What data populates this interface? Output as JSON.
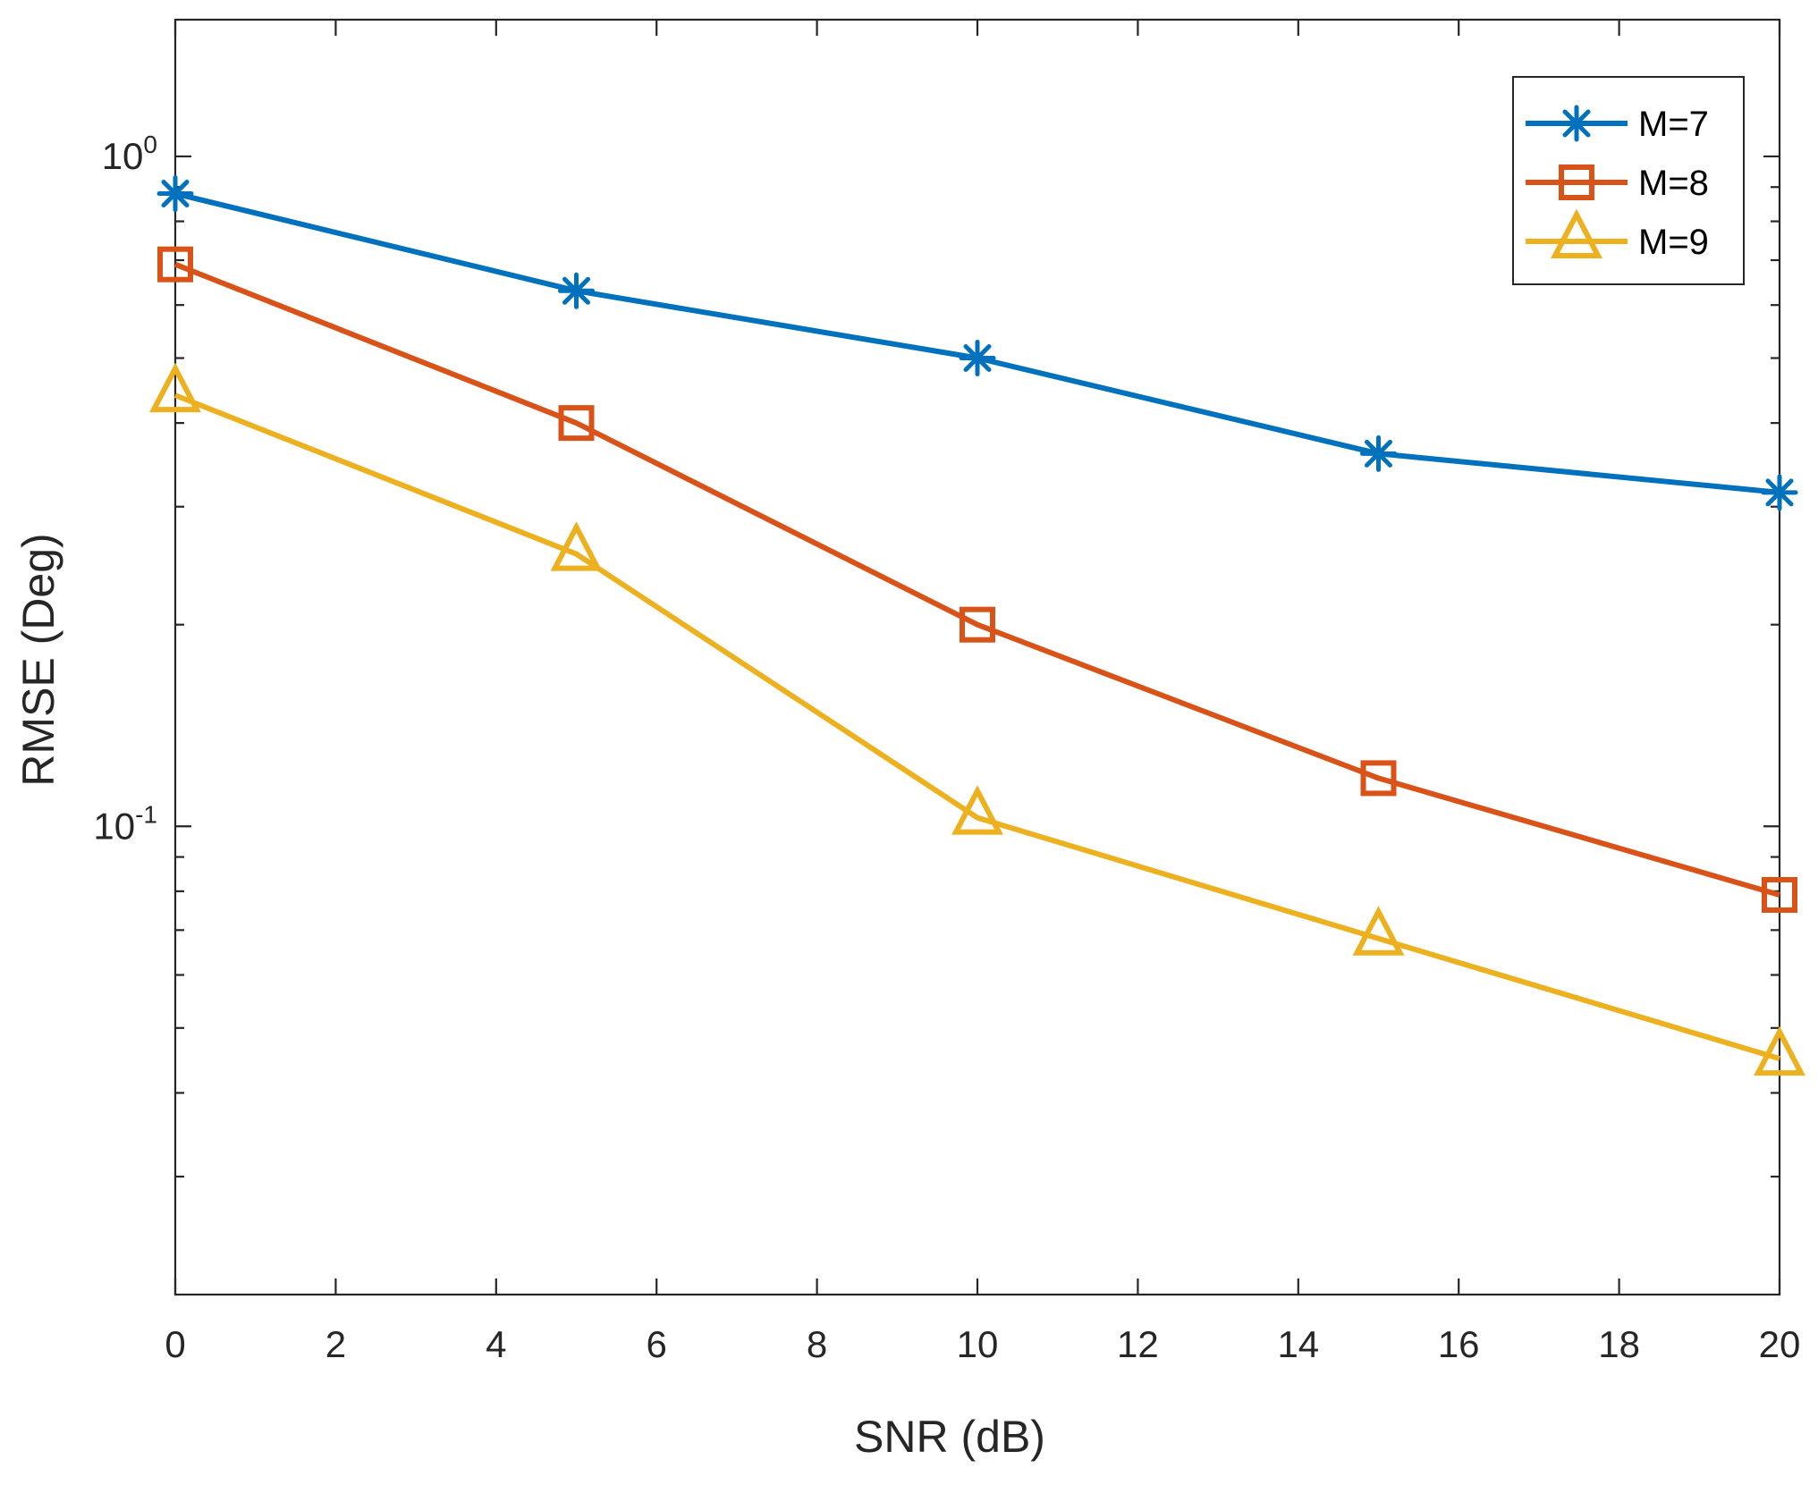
{
  "chart_data": {
    "type": "line",
    "xlabel": "SNR (dB)",
    "ylabel": "RMSE (Deg)",
    "xlim": [
      0,
      20
    ],
    "ylim": [
      0.02,
      1.6
    ],
    "yscale": "log",
    "x_ticks": [
      0,
      2,
      4,
      6,
      8,
      10,
      12,
      14,
      16,
      18,
      20
    ],
    "x_tick_labels": [
      "0",
      "2",
      "4",
      "6",
      "8",
      "10",
      "12",
      "14",
      "16",
      "18",
      "20"
    ],
    "y_major_ticks": [
      {
        "value": 1,
        "base": "10",
        "exp": "0"
      },
      {
        "value": 0.1,
        "base": "10",
        "exp": "-1"
      }
    ],
    "y_minor_ticks": [
      0.03,
      0.04,
      0.05,
      0.06,
      0.07,
      0.08,
      0.09,
      0.2,
      0.3,
      0.4,
      0.5,
      0.6,
      0.7,
      0.8,
      0.9
    ],
    "legend_position": "top-right",
    "grid": false,
    "x": [
      0,
      5,
      10,
      15,
      20
    ],
    "series": [
      {
        "name": "M=7",
        "marker": "asterisk",
        "color": "#0072BD",
        "values": [
          0.88,
          0.63,
          0.5,
          0.36,
          0.315
        ]
      },
      {
        "name": "M=8",
        "marker": "square",
        "color": "#D95319",
        "values": [
          0.69,
          0.4,
          0.2,
          0.118,
          0.079
        ]
      },
      {
        "name": "M=9",
        "marker": "triangle",
        "color": "#EDB120",
        "values": [
          0.44,
          0.255,
          0.103,
          0.068,
          0.045
        ]
      }
    ]
  }
}
